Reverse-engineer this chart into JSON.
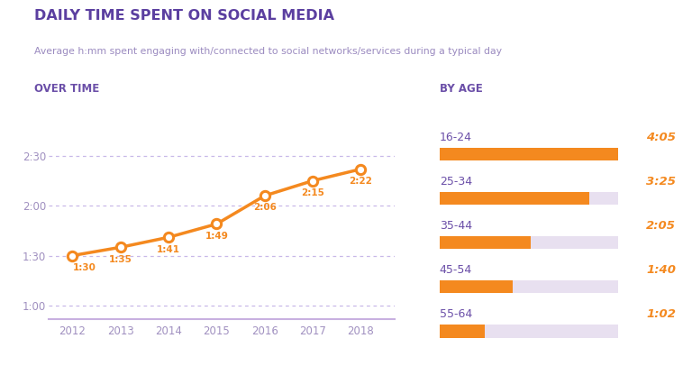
{
  "title": "DAILY TIME SPENT ON SOCIAL MEDIA",
  "subtitle": "Average h:mm spent engaging with/connected to social networks/services during a typical day",
  "left_section_label": "OVER TIME",
  "right_section_label": "BY AGE",
  "years": [
    2012,
    2013,
    2014,
    2015,
    2016,
    2017,
    2018
  ],
  "values_minutes": [
    90,
    95,
    101,
    109,
    126,
    135,
    142
  ],
  "value_labels": [
    "1:30",
    "1:35",
    "1:41",
    "1:49",
    "2:06",
    "2:15",
    "2:22"
  ],
  "yticks_minutes": [
    60,
    90,
    120,
    150
  ],
  "ytick_labels": [
    "1:00",
    "1:30",
    "2:00",
    "2:30"
  ],
  "age_groups": [
    "16-24",
    "25-34",
    "35-44",
    "45-54",
    "55-64"
  ],
  "age_values_minutes": [
    245,
    205,
    125,
    100,
    62
  ],
  "age_value_labels": [
    "4:05",
    "3:25",
    "2:05",
    "1:40",
    "1:02"
  ],
  "age_max_minutes": 245,
  "line_color": "#F4891F",
  "bar_color": "#F4891F",
  "bar_bg_color": "#E8E0F0",
  "grid_color": "#C8B8E8",
  "title_color": "#5B3FA0",
  "subtitle_color": "#9B8BC0",
  "section_label_color": "#6B4FA8",
  "tick_label_color": "#A090C0",
  "year_label_color": "#A090C0",
  "value_label_color": "#F4891F",
  "age_label_color": "#6B4FA8",
  "age_value_label_color": "#F4891F",
  "background_color": "#FFFFFF",
  "ylim_min": 52,
  "ylim_max": 158
}
